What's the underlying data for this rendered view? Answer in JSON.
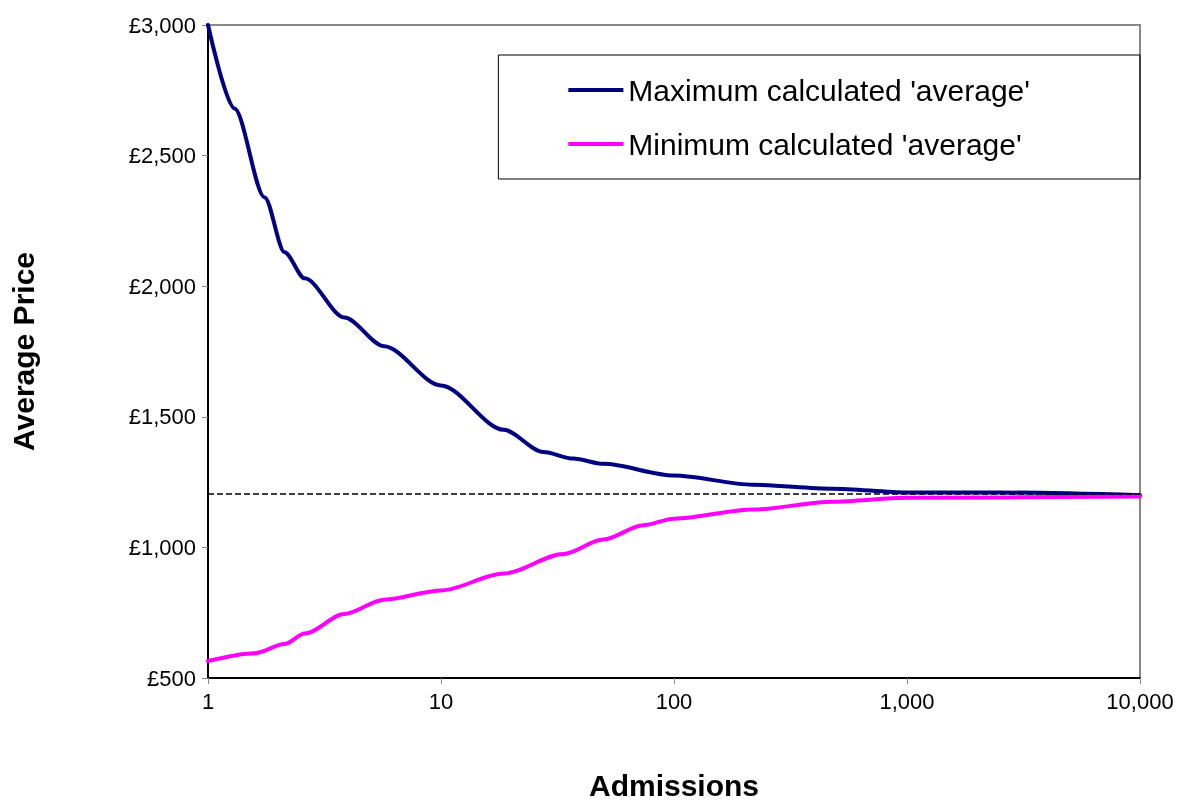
{
  "chart_data": {
    "type": "line",
    "xlabel": "Admissions",
    "ylabel": "Average Price",
    "log": "x",
    "xlim": [
      1,
      10000
    ],
    "ylim": [
      500,
      3000
    ],
    "xticks": [
      1,
      10,
      100,
      {
        "value": 1000,
        "label": "1,000"
      },
      {
        "value": 10000,
        "label": "10,000"
      }
    ],
    "yticks": [
      {
        "value": 500,
        "label": "£500"
      },
      {
        "value": 1000,
        "label": "£1,000"
      },
      {
        "value": 1500,
        "label": "£1,500"
      },
      {
        "value": 2000,
        "label": "£2,000"
      },
      {
        "value": 2500,
        "label": "£2,500"
      },
      {
        "value": 3000,
        "label": "£3,000"
      }
    ],
    "legend": "top right",
    "marker": "none",
    "line_style": "solid",
    "series": [
      {
        "name": "Maximum calculated 'average'",
        "color": "#000080",
        "x": [
          1,
          1.3,
          1.75,
          2.13,
          2.6,
          3.85,
          5.7,
          10,
          18.6,
          27.5,
          37,
          49.7,
          100,
          218,
          479,
          1000,
          2547,
          10000
        ],
        "values": [
          3000,
          2680,
          2340,
          2130,
          2030,
          1880,
          1770,
          1620,
          1450,
          1365,
          1340,
          1320,
          1275,
          1240,
          1225,
          1210,
          1210,
          1200
        ]
      },
      {
        "name": "Minimum calculated 'average'",
        "color": "#ff00ff",
        "x": [
          1,
          1.59,
          2.13,
          2.6,
          3.85,
          5.7,
          10,
          18.6,
          33.6,
          49.7,
          73.8,
          100,
          218,
          479,
          1000,
          10000
        ],
        "values": [
          565,
          595,
          630,
          670,
          745,
          800,
          835,
          900,
          975,
          1030,
          1085,
          1110,
          1145,
          1175,
          1190,
          1195
        ]
      }
    ],
    "ref_lines": [
      {
        "axis": "y",
        "value": 1205,
        "color": "#000000",
        "line_style": "dashed"
      }
    ]
  }
}
